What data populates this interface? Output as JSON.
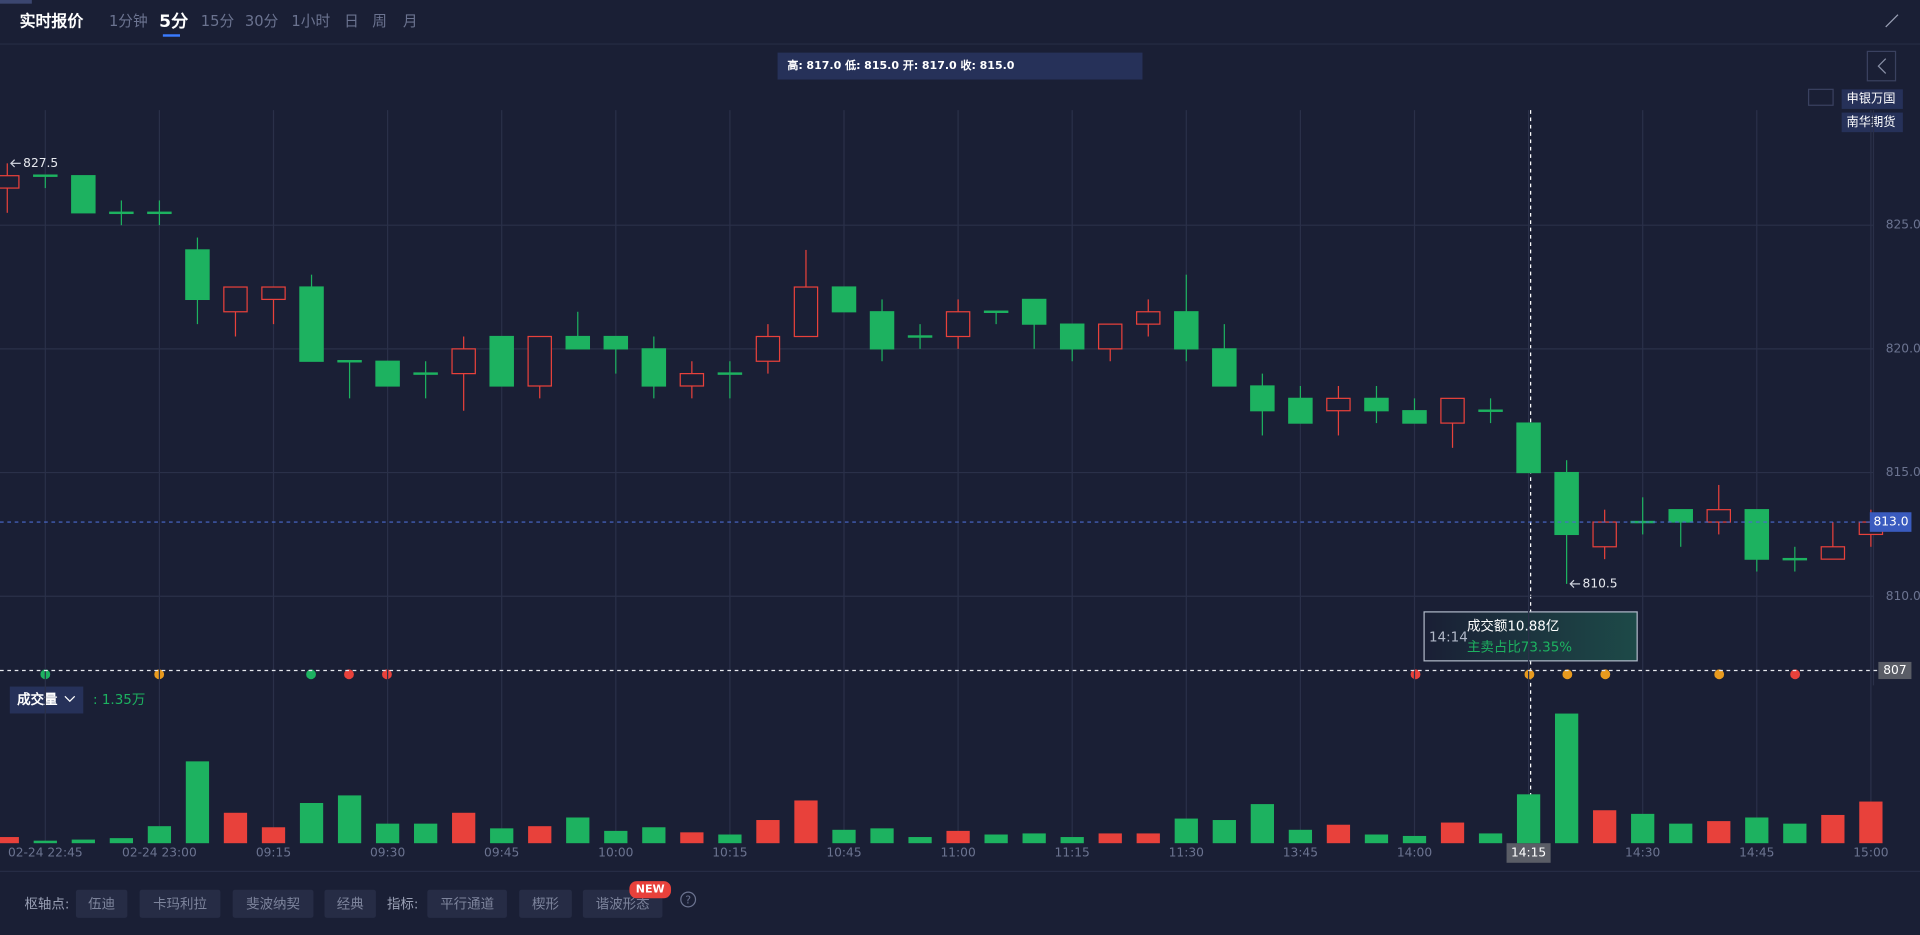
{
  "toolbar": {
    "title": "实时报价",
    "periods": [
      "1分钟",
      "5分",
      "15分",
      "30分",
      "1小时",
      "日",
      "周",
      "月"
    ],
    "active_period": 1
  },
  "info_bar": [
    {
      "label": "高:",
      "value": "817.0"
    },
    {
      "label": "低:",
      "value": "815.0"
    },
    {
      "label": "开:",
      "value": "817.0"
    },
    {
      "label": "收:",
      "value": "815.0"
    }
  ],
  "brokers": [
    "申银万国",
    "南华期货"
  ],
  "tooltip": {
    "time": "14:14",
    "lines": [
      "成交额10.88亿",
      "主卖占比73.35%"
    ]
  },
  "chart_data": [
    {
      "type": "candlestick",
      "categories": [
        null,
        "02-24 22:45",
        null,
        null,
        "02-24 23:00",
        null,
        null,
        "09:15",
        null,
        null,
        "09:30",
        null,
        null,
        "09:45",
        null,
        null,
        "10:00",
        null,
        null,
        "10:15",
        null,
        null,
        "10:45",
        null,
        null,
        "11:00",
        null,
        null,
        "11:15",
        null,
        null,
        "11:30",
        null,
        null,
        "13:45",
        null,
        null,
        "14:00",
        null,
        null,
        "14:15",
        null,
        null,
        "14:30",
        null,
        null,
        "14:45",
        null,
        null,
        "15:00"
      ],
      "open": [
        826.5,
        827.0,
        827.0,
        825.5,
        825.5,
        824.0,
        821.5,
        822.0,
        822.5,
        819.5,
        819.5,
        819.0,
        819.0,
        820.5,
        818.5,
        820.5,
        820.5,
        820.0,
        818.5,
        819.0,
        819.5,
        820.5,
        822.5,
        821.5,
        820.5,
        820.5,
        821.5,
        822.0,
        821.0,
        820.0,
        821.0,
        821.5,
        820.0,
        818.5,
        818.0,
        817.5,
        818.0,
        817.5,
        817.0,
        817.5,
        817.0,
        815.0,
        812.0,
        813.0,
        813.5,
        813.0,
        813.5,
        811.5,
        811.5,
        812.5
      ],
      "high": [
        827.5,
        827.0,
        827.0,
        826.0,
        826.0,
        824.5,
        822.5,
        822.5,
        823.0,
        819.5,
        819.5,
        819.5,
        820.5,
        820.5,
        820.5,
        821.5,
        820.5,
        820.5,
        819.5,
        819.5,
        821.0,
        824.0,
        822.5,
        822.0,
        821.0,
        822.0,
        821.5,
        822.0,
        821.0,
        821.0,
        822.0,
        823.0,
        821.0,
        819.0,
        818.5,
        818.5,
        818.5,
        818.0,
        818.0,
        818.0,
        817.0,
        815.5,
        813.5,
        814.0,
        813.5,
        814.5,
        813.5,
        812.0,
        813.0,
        813.5
      ],
      "low": [
        825.5,
        826.5,
        825.5,
        825.0,
        825.0,
        821.0,
        820.5,
        821.0,
        819.5,
        818.0,
        818.5,
        818.0,
        817.5,
        818.5,
        818.0,
        820.0,
        819.0,
        818.0,
        818.0,
        818.0,
        819.0,
        820.5,
        821.5,
        819.5,
        820.0,
        820.0,
        821.0,
        820.0,
        819.5,
        819.5,
        820.5,
        819.5,
        818.5,
        816.5,
        817.0,
        816.5,
        817.0,
        817.0,
        816.0,
        817.0,
        815.0,
        810.5,
        811.5,
        812.5,
        812.0,
        812.5,
        811.0,
        811.0,
        811.5,
        812.0
      ],
      "close": [
        827.0,
        827.0,
        825.5,
        825.5,
        825.5,
        822.0,
        822.5,
        822.5,
        819.5,
        819.5,
        818.5,
        819.0,
        820.0,
        818.5,
        820.5,
        820.0,
        820.0,
        818.5,
        819.0,
        819.0,
        820.5,
        822.5,
        821.5,
        820.0,
        820.5,
        821.5,
        821.5,
        821.0,
        820.0,
        821.0,
        821.5,
        820.0,
        818.5,
        817.5,
        817.0,
        818.0,
        817.5,
        817.0,
        818.0,
        817.5,
        815.0,
        812.5,
        813.0,
        813.0,
        813.0,
        813.5,
        811.5,
        811.5,
        812.0,
        813.0
      ],
      "up_color": "#e8413b",
      "down_color": "#1db260",
      "ylim": [
        806.4,
        829.65
      ],
      "yticks": [
        {
          "value": 810,
          "label": "810.0"
        },
        {
          "value": 815,
          "label": "815.0"
        },
        {
          "value": 820,
          "label": "820.0"
        },
        {
          "value": 825,
          "label": "825.0"
        }
      ],
      "grid": true,
      "max_marker": 827.5,
      "min_marker": 810.5,
      "last_price": {
        "value": 813,
        "label": "813.0"
      },
      "reference_line": 807
    },
    {
      "type": "bar",
      "name": "成交量",
      "current_label": ": 1.35万",
      "values": [
        0.17,
        0.07,
        0.1,
        0.14,
        0.47,
        2.26,
        0.84,
        0.44,
        1.11,
        1.32,
        0.54,
        0.54,
        0.84,
        0.41,
        0.47,
        0.71,
        0.34,
        0.44,
        0.3,
        0.24,
        0.64,
        1.18,
        0.37,
        0.41,
        0.17,
        0.34,
        0.24,
        0.27,
        0.17,
        0.27,
        0.27,
        0.68,
        0.64,
        1.08,
        0.37,
        0.51,
        0.24,
        0.2,
        0.57,
        0.27,
        1.35,
        3.58,
        0.91,
        0.81,
        0.54,
        0.61,
        0.71,
        0.54,
        0.78,
        1.15
      ],
      "ylim": [
        0,
        3.65
      ]
    }
  ],
  "footer": {
    "pivot_label": "枢轴点:",
    "pivots": [
      "伍迪",
      "卡玛利拉",
      "斐波纳契",
      "经典"
    ],
    "indicator_label": "指标:",
    "indicators": [
      "平行通道",
      "楔形",
      "谐波形态"
    ],
    "badge": "NEW",
    "help": "?"
  }
}
